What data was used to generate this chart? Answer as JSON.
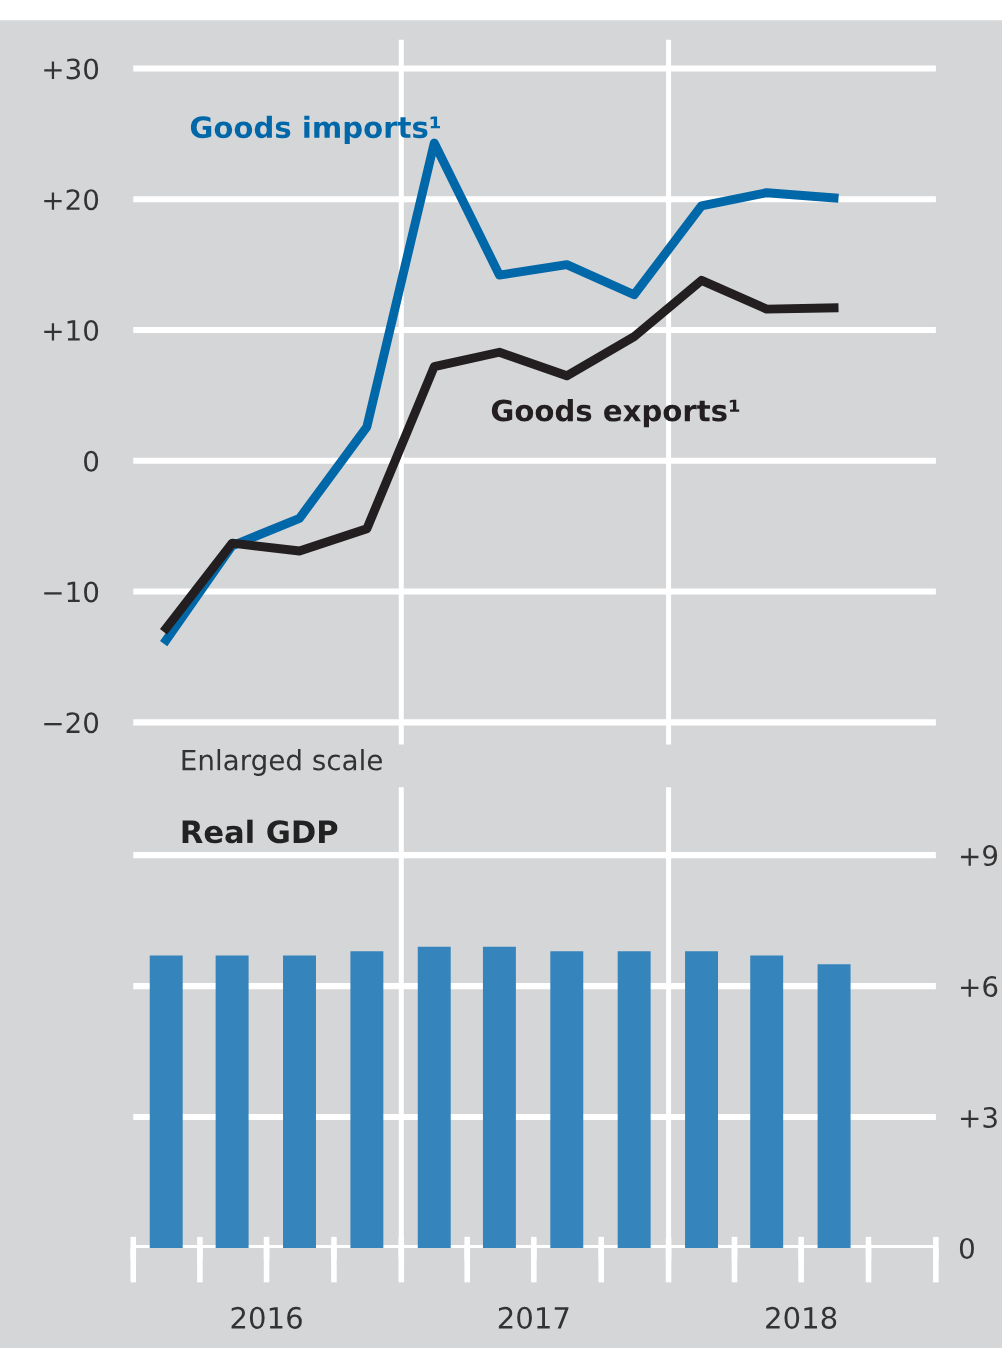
{
  "chart_data": [
    {
      "type": "line",
      "x": [
        "2016-02-15",
        "2016-05-15",
        "2016-08-15",
        "2016-11-15",
        "2017-02-15",
        "2017-05-15",
        "2017-08-15",
        "2017-11-15",
        "2018-02-15",
        "2018-05-15",
        "2018-08-15"
      ],
      "series": [
        {
          "name": "Goods imports¹",
          "color": "#0068a8",
          "values": [
            -13.7,
            -6.5,
            -4.4,
            2.6,
            24.3,
            14.2,
            15.0,
            12.7,
            19.5,
            20.5,
            20.1
          ]
        },
        {
          "name": "Goods exports¹",
          "color": "#231f20",
          "values": [
            -12.8,
            -6.3,
            -6.9,
            -5.2,
            7.2,
            8.3,
            6.5,
            9.5,
            13.8,
            11.6,
            11.7
          ]
        }
      ],
      "xlim": [
        "2016-01-01",
        "2019-01-01"
      ],
      "ylim": [
        -21.5,
        32
      ],
      "yticks": [
        {
          "value": 30,
          "label": "+30"
        },
        {
          "value": 20,
          "label": "+20"
        },
        {
          "value": 10,
          "label": "+10"
        },
        0,
        {
          "value": -10,
          "label": "−10"
        },
        {
          "value": -20,
          "label": "−20"
        }
      ],
      "grid": "y",
      "ref_lines": [
        {
          "axis": "x",
          "value": "2017-01-01",
          "color": "#ffffff"
        },
        {
          "axis": "x",
          "value": "2018-01-01",
          "color": "#ffffff"
        }
      ],
      "tick_labels": "y"
    },
    {
      "type": "bar",
      "title": "Real GDP",
      "subtitle": "Enlarged scale",
      "x": [
        "2016-02-15",
        "2016-05-15",
        "2016-08-15",
        "2016-11-15",
        "2017-02-15",
        "2017-05-15",
        "2017-08-15",
        "2017-11-15",
        "2018-02-15",
        "2018-05-15",
        "2018-08-15"
      ],
      "values": [
        6.7,
        6.7,
        6.7,
        6.8,
        6.9,
        6.9,
        6.8,
        6.8,
        6.8,
        6.7,
        6.5
      ],
      "color": "#3584bc",
      "xlim": [
        "2016-01-01",
        "2019-01-01"
      ],
      "xticks": [
        {
          "value": "2016-01-01",
          "label": null
        },
        {
          "value": "2016-04-01",
          "label": null
        },
        {
          "value": "2016-07-01",
          "label": "2016"
        },
        {
          "value": "2016-10-01",
          "label": null
        },
        {
          "value": "2017-01-01",
          "label": null
        },
        {
          "value": "2017-04-01",
          "label": null
        },
        {
          "value": "2017-07-01",
          "label": "2017"
        },
        {
          "value": "2017-10-01",
          "label": null
        },
        {
          "value": "2018-01-01",
          "label": null
        },
        {
          "value": "2018-04-01",
          "label": null
        },
        {
          "value": "2018-07-01",
          "label": "2018"
        },
        {
          "value": "2018-10-01",
          "label": null
        },
        {
          "value": "2019-01-01",
          "label": null
        }
      ],
      "ylim": [
        0,
        10.5
      ],
      "yticks": [
        {
          "value": 9,
          "label": "+9"
        },
        {
          "value": 6,
          "label": "+6"
        },
        {
          "value": 3,
          "label": "+3"
        },
        0
      ],
      "grid": "y",
      "ref_lines": [
        {
          "axis": "x",
          "value": "2017-01-01",
          "color": "#ffffff"
        },
        {
          "axis": "x",
          "value": "2018-01-01",
          "color": "#ffffff"
        }
      ]
    }
  ]
}
